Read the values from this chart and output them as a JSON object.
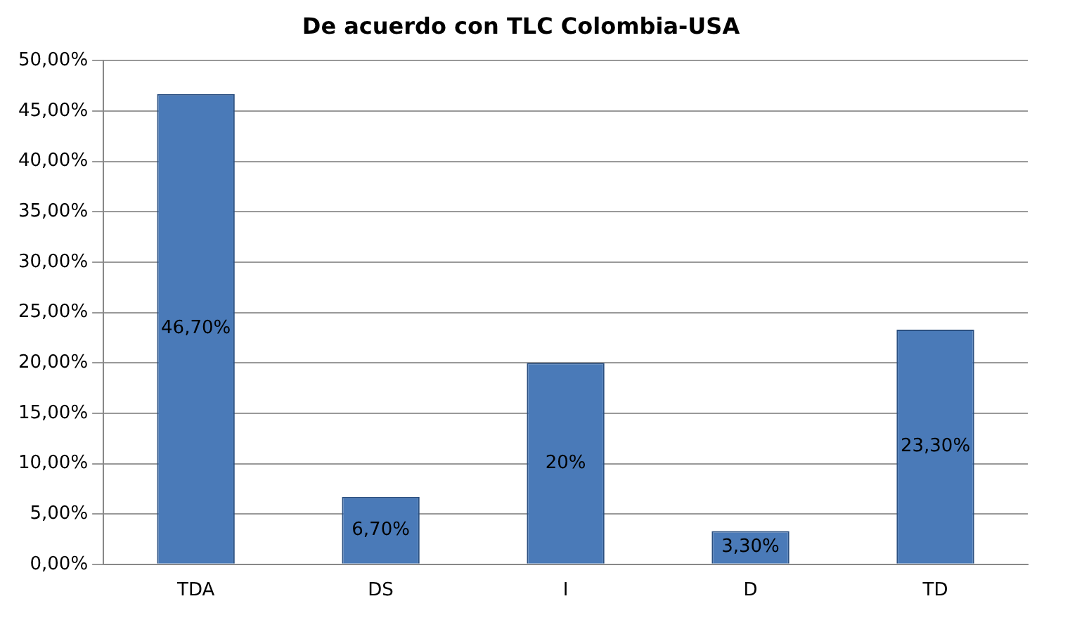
{
  "chart_data": {
    "type": "bar",
    "title": "De acuerdo con TLC Colombia-USA",
    "categories": [
      "TDA",
      "DS",
      "I",
      "D",
      "TD"
    ],
    "values": [
      46.7,
      6.7,
      20,
      3.3,
      23.3
    ],
    "value_labels": [
      "46,70%",
      "6,70%",
      "20%",
      "3,30%",
      "23,30%"
    ],
    "color": "#4a7ab8",
    "ylim": [
      0,
      50
    ],
    "yticks": [
      {
        "value": 0,
        "label": "0,00%"
      },
      {
        "value": 5,
        "label": "5,00%"
      },
      {
        "value": 10,
        "label": "10,00%"
      },
      {
        "value": 15,
        "label": "15,00%"
      },
      {
        "value": 20,
        "label": "20,00%"
      },
      {
        "value": 25,
        "label": "25,00%"
      },
      {
        "value": 30,
        "label": "30,00%"
      },
      {
        "value": 35,
        "label": "35,00%"
      },
      {
        "value": 40,
        "label": "40,00%"
      },
      {
        "value": 45,
        "label": "45,00%"
      },
      {
        "value": 50,
        "label": "50,00%"
      }
    ],
    "grid": "y",
    "legend": false
  }
}
